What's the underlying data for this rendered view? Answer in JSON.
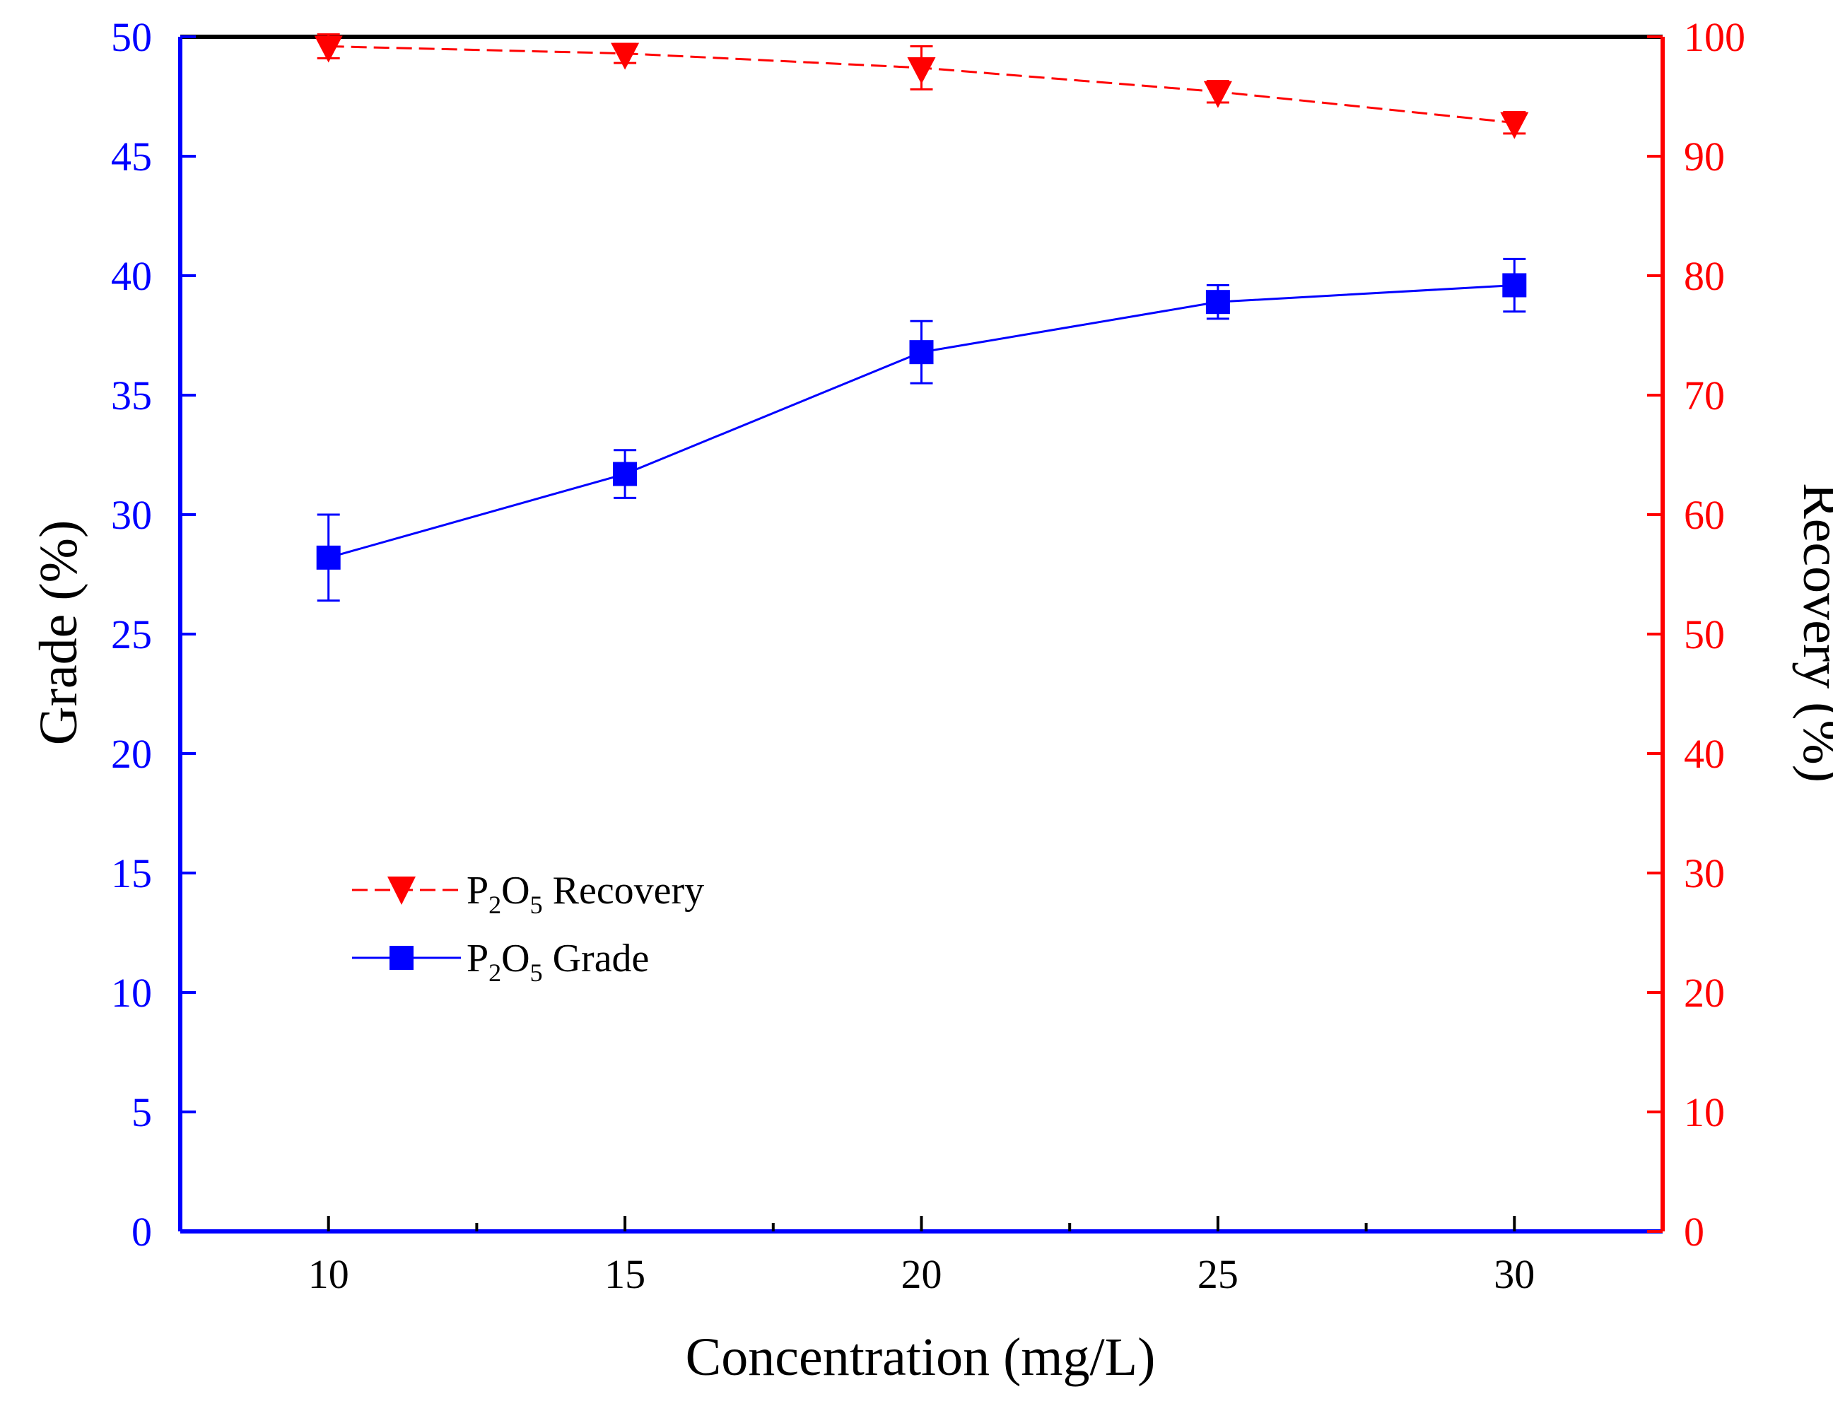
{
  "chart_data": {
    "type": "line",
    "x": [
      10,
      15,
      20,
      25,
      30
    ],
    "xlabel": "Concentration (mg/L)",
    "xlim": [
      7.5,
      32.5
    ],
    "xticks": [
      10,
      15,
      20,
      25,
      30
    ],
    "y_left": {
      "label": "Grade (%)",
      "lim": [
        0,
        50
      ],
      "ticks": [
        0,
        5,
        10,
        15,
        20,
        25,
        30,
        35,
        40,
        45,
        50
      ],
      "color": "#0000FF"
    },
    "y_right": {
      "label": "Recovery (%)",
      "lim": [
        0,
        100
      ],
      "ticks": [
        0,
        10,
        20,
        30,
        40,
        50,
        60,
        70,
        80,
        90,
        100
      ],
      "color": "#FF0000"
    },
    "series": [
      {
        "name": "P2O5 Recovery",
        "legend_label": {
          "p": "P",
          "sub1": "2",
          "o": "O",
          "sub2": "5",
          "rest": " Recovery"
        },
        "axis": "right",
        "marker": "triangle-down",
        "line_style": "dashed",
        "color": "#FF0000",
        "values": [
          99.2,
          98.6,
          97.4,
          95.4,
          92.8
        ],
        "errors": [
          1.0,
          0.8,
          1.8,
          0.9,
          0.9
        ]
      },
      {
        "name": "P2O5 Grade",
        "legend_label": {
          "p": "P",
          "sub1": "2",
          "o": "O",
          "sub2": "5",
          "rest": " Grade"
        },
        "axis": "left",
        "marker": "square",
        "line_style": "solid",
        "color": "#0000FF",
        "values": [
          28.2,
          31.7,
          36.8,
          38.9,
          39.6
        ],
        "errors": [
          1.8,
          1.0,
          1.3,
          0.7,
          1.1
        ]
      }
    ],
    "legend_position": "lower-left",
    "grid": false
  }
}
